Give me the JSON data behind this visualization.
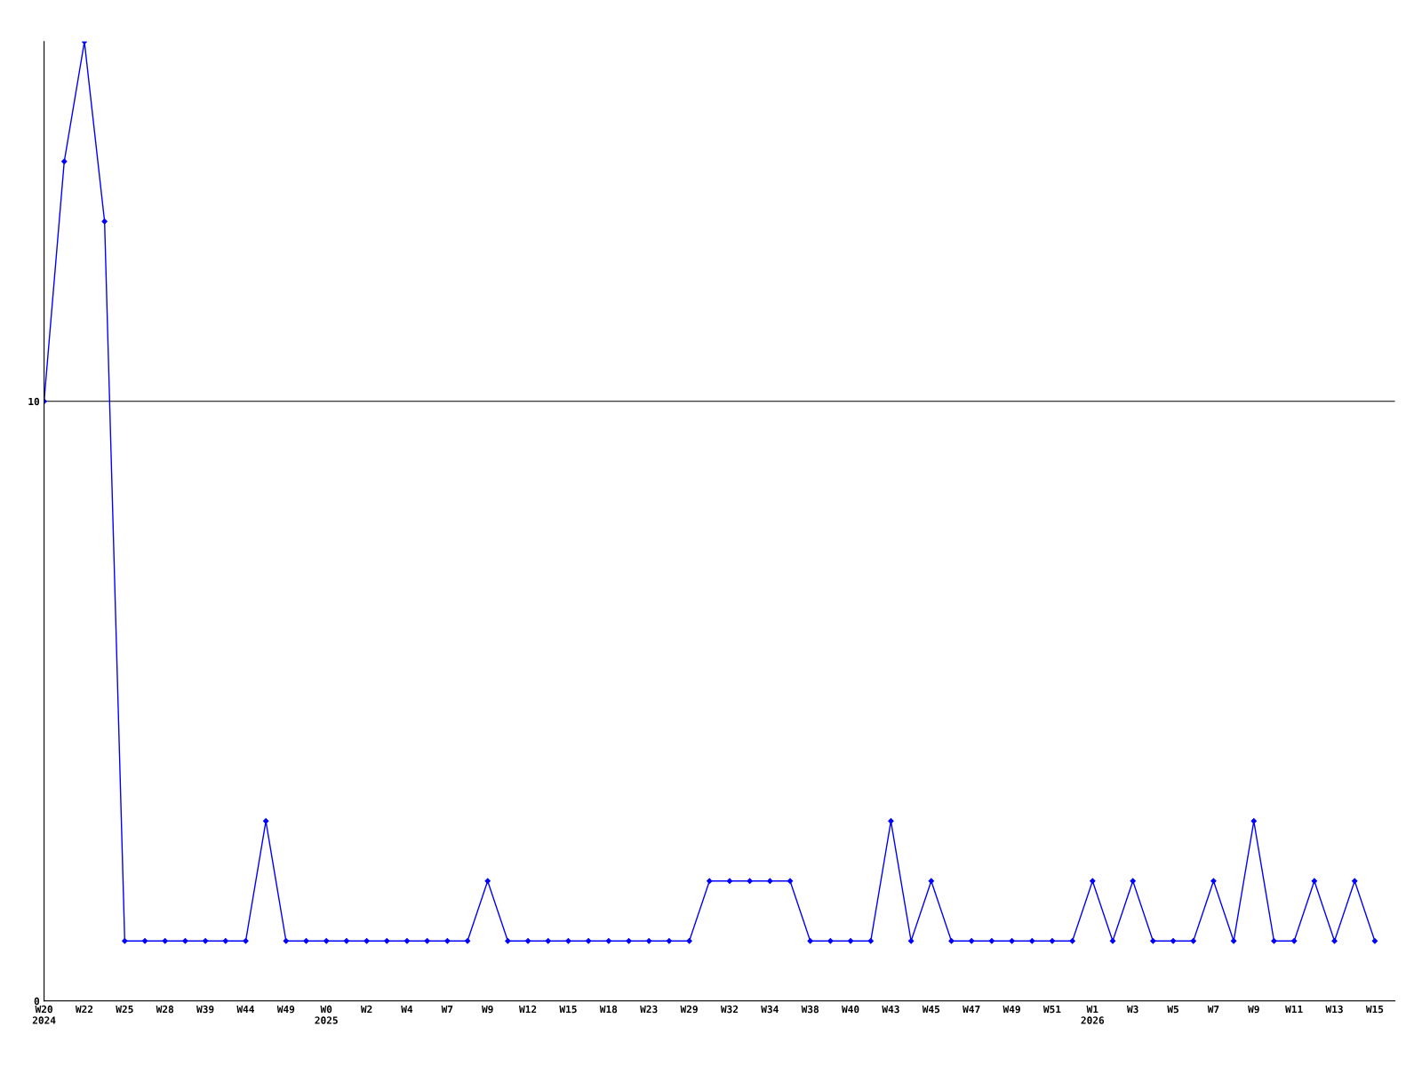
{
  "chart_data": {
    "type": "line",
    "categories": [
      "W20\n2024",
      null,
      "W22",
      null,
      "W25",
      null,
      "W28",
      null,
      "W39",
      null,
      "W44",
      null,
      "W49",
      null,
      "W0\n2025",
      null,
      "W2",
      null,
      "W4",
      null,
      "W7",
      null,
      "W9",
      null,
      "W12",
      null,
      "W15",
      null,
      "W18",
      null,
      "W23",
      null,
      "W29",
      null,
      "W32",
      null,
      "W34",
      null,
      "W38",
      null,
      "W40",
      null,
      "W43",
      null,
      "W45",
      null,
      "W47",
      null,
      "W49",
      null,
      "W51",
      null,
      "W1\n2026",
      null,
      "W3",
      null,
      "W5",
      null,
      "W7",
      null,
      "W9",
      null,
      "W11",
      null,
      "W13",
      null,
      "W15"
    ],
    "series": [
      {
        "color": "#0000ff",
        "values": [
          10,
          14,
          16,
          13,
          1,
          1,
          1,
          1,
          1,
          1,
          1,
          3,
          1,
          1,
          1,
          1,
          1,
          1,
          1,
          1,
          1,
          1,
          2,
          1,
          1,
          1,
          1,
          1,
          1,
          1,
          1,
          1,
          1,
          2,
          2,
          2,
          2,
          2,
          1,
          1,
          1,
          1,
          3,
          1,
          2,
          1,
          1,
          1,
          1,
          1,
          1,
          1,
          2,
          1,
          2,
          1,
          1,
          1,
          2,
          1,
          3,
          1,
          1,
          2,
          1,
          2,
          1
        ]
      }
    ],
    "ylim": [
      0,
      16
    ],
    "yticks": [
      0,
      10
    ],
    "grid": "y",
    "marker": "diamond",
    "line_style": "solid"
  }
}
